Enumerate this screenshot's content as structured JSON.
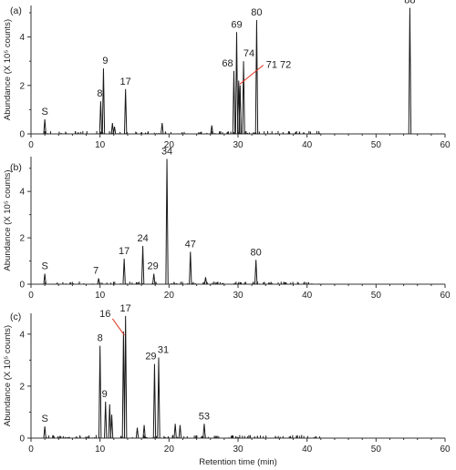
{
  "chart_data": [
    {
      "type": "line",
      "panel_label": "(a)",
      "ylabel": "Abundance (X 10⁵ counts)",
      "xlabel": "",
      "xlim": [
        0,
        60
      ],
      "ylim": [
        0,
        5.3
      ],
      "x_ticks": [
        "0",
        "10",
        "20",
        "30",
        "40",
        "50",
        "60"
      ],
      "y_ticks": [
        "0",
        "2",
        "4"
      ],
      "peaks": [
        {
          "rt": 2.0,
          "height": 0.6,
          "label": "S"
        },
        {
          "rt": 10.1,
          "height": 1.35,
          "label": "8"
        },
        {
          "rt": 10.5,
          "height": 2.7,
          "label": "9"
        },
        {
          "rt": 13.7,
          "height": 1.85,
          "label": "17"
        },
        {
          "rt": 29.4,
          "height": 2.6,
          "label": "68"
        },
        {
          "rt": 29.8,
          "height": 4.2,
          "label": "69"
        },
        {
          "rt": 30.1,
          "height": 2.2,
          "label": ""
        },
        {
          "rt": 30.3,
          "height": 2.0,
          "label": ""
        },
        {
          "rt": 30.8,
          "height": 3.0,
          "label": "74"
        },
        {
          "rt": 32.7,
          "height": 4.7,
          "label": "80"
        },
        {
          "rt": 54.9,
          "height": 5.2,
          "label": "88"
        },
        {
          "rt": 11.8,
          "height": 0.45,
          "label": ""
        },
        {
          "rt": 12.1,
          "height": 0.3,
          "label": ""
        },
        {
          "rt": 19.0,
          "height": 0.45,
          "label": ""
        },
        {
          "rt": 26.2,
          "height": 0.35,
          "label": ""
        }
      ],
      "annotations": [
        {
          "text": "71 72",
          "target_rt": 30.1,
          "target_height": 2.2
        }
      ]
    },
    {
      "type": "line",
      "panel_label": "(b)",
      "ylabel": "Abundance (X 10⁵ counts)",
      "xlabel": "",
      "xlim": [
        0,
        60
      ],
      "ylim": [
        0,
        5.5
      ],
      "x_ticks": [
        "0",
        "10",
        "20",
        "30",
        "40",
        "50",
        "60"
      ],
      "y_ticks": [
        "0",
        "2",
        "4"
      ],
      "peaks": [
        {
          "rt": 2.0,
          "height": 0.45,
          "label": "S"
        },
        {
          "rt": 9.8,
          "height": 0.25,
          "label": "7"
        },
        {
          "rt": 13.5,
          "height": 1.1,
          "label": "17"
        },
        {
          "rt": 16.2,
          "height": 1.65,
          "label": "24"
        },
        {
          "rt": 17.8,
          "height": 0.45,
          "label": "29"
        },
        {
          "rt": 19.7,
          "height": 5.4,
          "label": "34"
        },
        {
          "rt": 23.1,
          "height": 1.4,
          "label": "47"
        },
        {
          "rt": 32.6,
          "height": 1.05,
          "label": "80"
        },
        {
          "rt": 25.3,
          "height": 0.3,
          "label": ""
        }
      ],
      "annotations": []
    },
    {
      "type": "line",
      "panel_label": "(c)",
      "ylabel": "Abundance (X 10⁵ counts)",
      "xlabel": "Retention time (min)",
      "xlim": [
        0,
        60
      ],
      "ylim": [
        0,
        4.8
      ],
      "x_ticks": [
        "0",
        "10",
        "20",
        "30",
        "40",
        "50",
        "60"
      ],
      "y_ticks": [
        "0",
        "2",
        "4"
      ],
      "peaks": [
        {
          "rt": 2.0,
          "height": 0.45,
          "label": "S"
        },
        {
          "rt": 10.0,
          "height": 3.55,
          "label": "8"
        },
        {
          "rt": 10.8,
          "height": 1.4,
          "label": "9"
        },
        {
          "rt": 11.4,
          "height": 1.3,
          "label": ""
        },
        {
          "rt": 11.7,
          "height": 0.9,
          "label": ""
        },
        {
          "rt": 13.4,
          "height": 4.1,
          "label": ""
        },
        {
          "rt": 13.7,
          "height": 4.7,
          "label": "17"
        },
        {
          "rt": 17.9,
          "height": 2.85,
          "label": "29"
        },
        {
          "rt": 18.5,
          "height": 3.1,
          "label": "31"
        },
        {
          "rt": 25.1,
          "height": 0.55,
          "label": "53"
        },
        {
          "rt": 16.4,
          "height": 0.5,
          "label": ""
        },
        {
          "rt": 20.9,
          "height": 0.55,
          "label": ""
        },
        {
          "rt": 21.6,
          "height": 0.5,
          "label": ""
        },
        {
          "rt": 15.4,
          "height": 0.4,
          "label": ""
        }
      ],
      "annotations": [
        {
          "text": "16",
          "target_rt": 13.4,
          "target_height": 4.1
        }
      ]
    }
  ]
}
